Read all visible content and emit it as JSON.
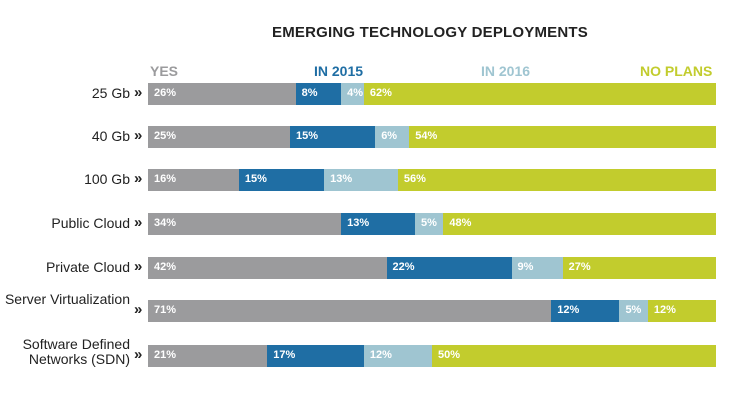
{
  "chart_data": {
    "type": "bar",
    "orientation": "horizontal",
    "stacked": true,
    "title": "EMERGING TECHNOLOGY DEPLOYMENTS",
    "categories": [
      "25 Gb",
      "40 Gb",
      "100 Gb",
      "Public Cloud",
      "Private Cloud",
      "Server Virtualization",
      "Software Defined Networks (SDN)"
    ],
    "series": [
      {
        "name": "YES",
        "color": "#9b9b9d",
        "values": [
          26,
          25,
          16,
          34,
          42,
          71,
          21
        ]
      },
      {
        "name": "IN 2015",
        "color": "#1f6ea4",
        "values": [
          8,
          15,
          15,
          13,
          22,
          12,
          17
        ]
      },
      {
        "name": "IN 2016",
        "color": "#9fc5d1",
        "values": [
          4,
          6,
          13,
          5,
          9,
          5,
          12
        ]
      },
      {
        "name": "NO PLANS",
        "color": "#c2cc2d",
        "values": [
          62,
          54,
          56,
          48,
          27,
          12,
          50
        ]
      }
    ],
    "value_suffix": "%",
    "row_marker": "»",
    "legend_position": "top"
  }
}
